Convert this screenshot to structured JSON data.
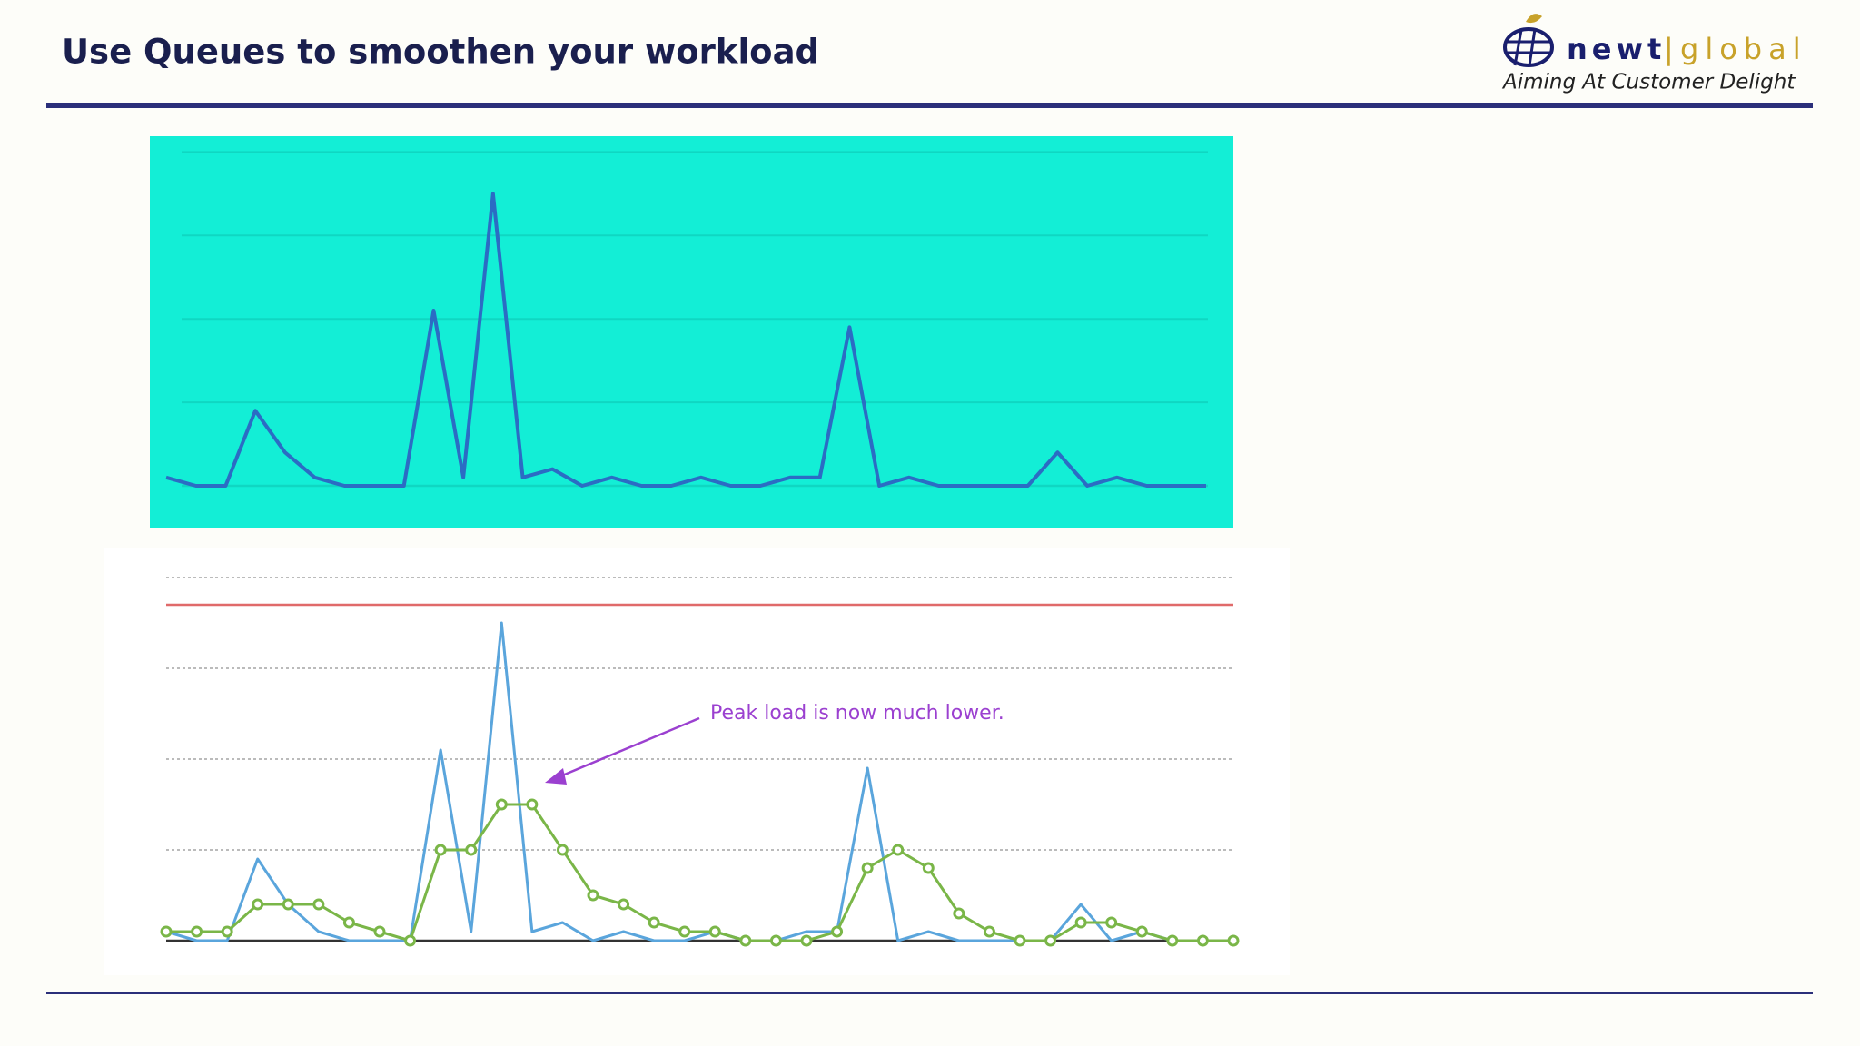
{
  "header": {
    "title": "Use Queues to smoothen your workload"
  },
  "logo": {
    "name_1": "newt",
    "name_2": "global",
    "tagline": "Aiming At Customer Delight"
  },
  "chart_data": [
    {
      "type": "line",
      "categories": [
        null,
        null,
        null,
        null,
        null,
        null,
        null,
        null,
        null,
        null,
        null,
        null,
        null,
        null,
        null,
        null,
        null,
        null,
        null,
        null,
        null,
        null,
        null,
        null,
        null,
        null,
        null,
        null,
        null,
        null,
        null,
        null,
        null,
        null,
        null,
        null
      ],
      "series": [
        {
          "color": "#2b6cc4",
          "values": [
            0.1,
            0,
            0,
            0.9,
            0.4,
            0.1,
            0,
            0,
            0,
            2.1,
            0.1,
            3.5,
            0.1,
            0.2,
            0,
            0.1,
            0,
            0,
            0.1,
            0,
            0,
            0.1,
            0.1,
            1.9,
            0,
            0.1,
            0,
            0,
            0,
            0,
            0.4,
            0,
            0.1,
            0,
            0,
            0
          ]
        }
      ],
      "ylim": [
        0,
        4.2
      ],
      "yticks": [
        0,
        1,
        2,
        3,
        4
      ],
      "grid": true,
      "background": "#13eed6"
    },
    {
      "type": "line",
      "categories": [
        null,
        null,
        null,
        null,
        null,
        null,
        null,
        null,
        null,
        null,
        null,
        null,
        null,
        null,
        null,
        null,
        null,
        null,
        null,
        null,
        null,
        null,
        null,
        null,
        null,
        null,
        null,
        null,
        null,
        null,
        null,
        null,
        null,
        null,
        null,
        null
      ],
      "series": [
        {
          "color": "#5aa5dc",
          "values": [
            0.1,
            0,
            0,
            0.9,
            0.4,
            0.1,
            0,
            0,
            0,
            2.1,
            0.1,
            3.5,
            0.1,
            0.2,
            0,
            0.1,
            0,
            0,
            0.1,
            0,
            0,
            0.1,
            0.1,
            1.9,
            0,
            0.1,
            0,
            0,
            0,
            0,
            0.4,
            0,
            0.1,
            0,
            0,
            0
          ]
        },
        {
          "color": "#7ab648",
          "markers": true,
          "values": [
            0.1,
            0.1,
            0.1,
            0.4,
            0.4,
            0.4,
            0.2,
            0.1,
            0,
            1,
            1,
            1.5,
            1.5,
            1,
            0.5,
            0.4,
            0.2,
            0.1,
            0.1,
            0,
            0,
            0,
            0.1,
            0.8,
            1,
            0.8,
            0.3,
            0.1,
            0,
            0,
            0.2,
            0.2,
            0.1,
            0,
            0,
            0
          ]
        }
      ],
      "reference_line": {
        "value": 3.7,
        "color": "#e06a6a"
      },
      "annotation": "Peak load is now much lower.",
      "ylim": [
        0,
        4.2
      ],
      "yticks": [
        0,
        1,
        2,
        3,
        4
      ],
      "grid": true,
      "background": "#ffffff"
    }
  ]
}
